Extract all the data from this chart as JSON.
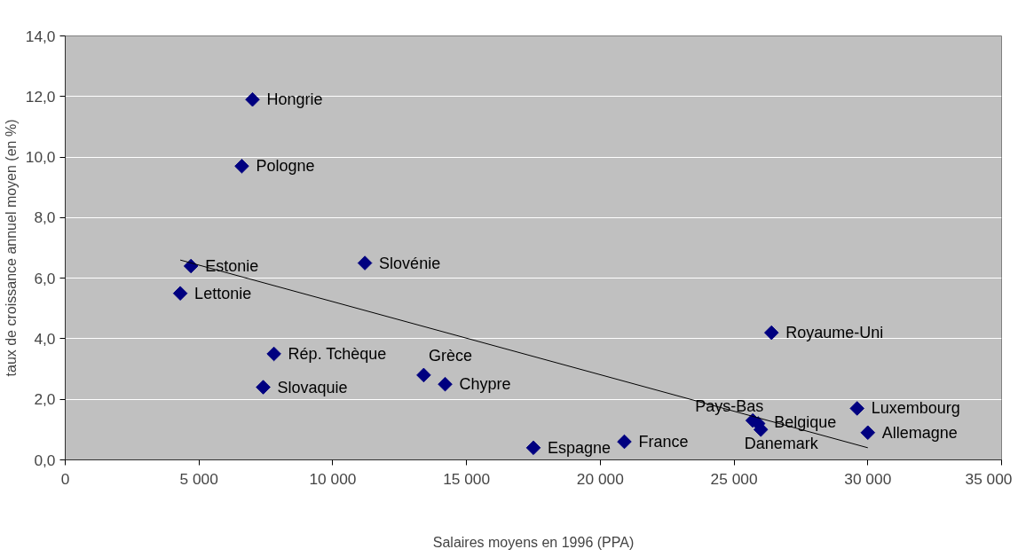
{
  "chart_data": {
    "type": "scatter",
    "xlabel": "Salaires moyens en 1996 (PPA)",
    "ylabel": "taux de croissance annuel moyen (en %)",
    "xlim": [
      0,
      35000
    ],
    "ylim": [
      0,
      14
    ],
    "xticks": [
      {
        "value": 0,
        "label": "0"
      },
      {
        "value": 5000,
        "label": "5 000"
      },
      {
        "value": 10000,
        "label": "10 000"
      },
      {
        "value": 15000,
        "label": "15 000"
      },
      {
        "value": 20000,
        "label": "20 000"
      },
      {
        "value": 25000,
        "label": "25 000"
      },
      {
        "value": 30000,
        "label": "30 000"
      },
      {
        "value": 35000,
        "label": "35 000"
      }
    ],
    "yticks": [
      {
        "value": 0,
        "label": "0,0"
      },
      {
        "value": 2,
        "label": "2,0"
      },
      {
        "value": 4,
        "label": "4,0"
      },
      {
        "value": 6,
        "label": "6,0"
      },
      {
        "value": 8,
        "label": "8,0"
      },
      {
        "value": 10,
        "label": "10,0"
      },
      {
        "value": 12,
        "label": "12,0"
      },
      {
        "value": 14,
        "label": "14,0"
      }
    ],
    "grid": "y",
    "series": [
      {
        "marker": "diamond",
        "color": "#000080",
        "x": [
          7000,
          6600,
          4700,
          4300,
          11200,
          7800,
          7400,
          13400,
          14200,
          17500,
          20900,
          26400,
          29600,
          30000,
          25700,
          25900,
          26000
        ],
        "values": [
          11.9,
          9.7,
          6.4,
          5.5,
          6.5,
          3.5,
          2.4,
          2.8,
          2.5,
          0.4,
          0.6,
          4.2,
          1.7,
          0.9,
          1.3,
          1.2,
          1.0
        ]
      },
      {
        "type": "line",
        "color": "#000000",
        "line_style": "solid",
        "x": [
          4300,
          30000
        ],
        "values": [
          6.6,
          0.4
        ]
      }
    ],
    "annotations": [
      {
        "text": "Hongrie",
        "x": 7000,
        "y": 11.9
      },
      {
        "text": "Pologne",
        "x": 6600,
        "y": 9.7
      },
      {
        "text": "Estonie",
        "x": 4700,
        "y": 6.4
      },
      {
        "text": "Lettonie",
        "x": 4300,
        "y": 5.5
      },
      {
        "text": "Slovénie",
        "x": 11200,
        "y": 6.5
      },
      {
        "text": "Rép. Tchèque",
        "x": 7800,
        "y": 3.5
      },
      {
        "text": "Slovaquie",
        "x": 7400,
        "y": 2.4
      },
      {
        "text": "Grèce",
        "x": 13400,
        "y": 2.8
      },
      {
        "text": "Chypre",
        "x": 14200,
        "y": 2.5
      },
      {
        "text": "Espagne",
        "x": 17500,
        "y": 0.4
      },
      {
        "text": "France",
        "x": 20900,
        "y": 0.6
      },
      {
        "text": "Royaume-Uni",
        "x": 26400,
        "y": 4.2
      },
      {
        "text": "Luxembourg",
        "x": 29600,
        "y": 1.7
      },
      {
        "text": "Allemagne",
        "x": 30000,
        "y": 0.9
      },
      {
        "text": "Pays-Bas",
        "x": 25700,
        "y": 1.3
      },
      {
        "text": "Belgique",
        "x": 25900,
        "y": 1.2
      },
      {
        "text": "Danemark",
        "x": 26000,
        "y": 1.0
      }
    ]
  }
}
